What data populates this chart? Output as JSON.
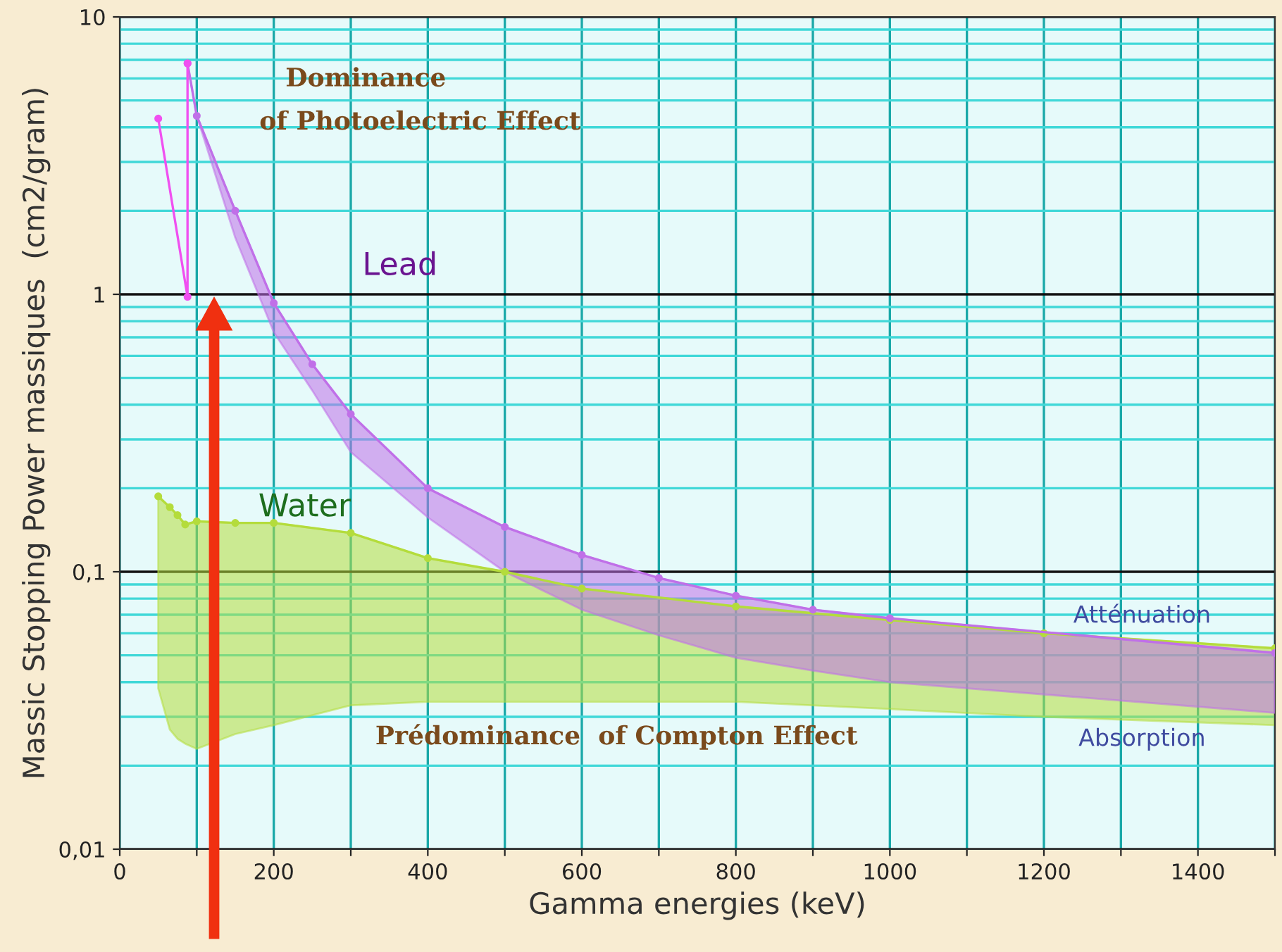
{
  "chart_data": {
    "type": "line",
    "xlabel": "Gamma energies (keV)",
    "ylabel": "Massic Stopping Power massiques  (cm2/gram)",
    "log": "y",
    "grid": true,
    "marker": "circle",
    "line_style": "solid",
    "xlim": [
      0,
      1500
    ],
    "xticks": [
      0,
      {
        "value": 100,
        "label": null
      },
      200,
      {
        "value": 300,
        "label": null
      },
      400,
      {
        "value": 500,
        "label": null
      },
      600,
      {
        "value": 700,
        "label": null
      },
      800,
      {
        "value": 900,
        "label": null
      },
      1000,
      {
        "value": 1100,
        "label": null
      },
      1200,
      {
        "value": 1300,
        "label": null
      },
      1400,
      {
        "value": 1500,
        "label": null
      }
    ],
    "ylim": [
      0.01,
      10
    ],
    "yticks": [
      {
        "value": 0.01,
        "label": "0,01"
      },
      {
        "value": 0.02,
        "label": null
      },
      {
        "value": 0.03,
        "label": null
      },
      {
        "value": 0.04,
        "label": null
      },
      {
        "value": 0.05,
        "label": null
      },
      {
        "value": 0.06,
        "label": null
      },
      {
        "value": 0.07,
        "label": null
      },
      {
        "value": 0.08,
        "label": null
      },
      {
        "value": 0.09,
        "label": null
      },
      {
        "value": 0.1,
        "label": "0,1"
      },
      {
        "value": 0.2,
        "label": null
      },
      {
        "value": 0.3,
        "label": null
      },
      {
        "value": 0.4,
        "label": null
      },
      {
        "value": 0.5,
        "label": null
      },
      {
        "value": 0.6,
        "label": null
      },
      {
        "value": 0.7,
        "label": null
      },
      {
        "value": 0.8,
        "label": null
      },
      {
        "value": 0.9,
        "label": null
      },
      1,
      {
        "value": 2,
        "label": null
      },
      {
        "value": 3,
        "label": null
      },
      {
        "value": 4,
        "label": null
      },
      {
        "value": 5,
        "label": null
      },
      {
        "value": 6,
        "label": null
      },
      {
        "value": 7,
        "label": null
      },
      {
        "value": 8,
        "label": null
      },
      {
        "value": 9,
        "label": null
      },
      10
    ],
    "series": [
      {
        "name": "Water",
        "color": "#b4dc3c",
        "x": [
          50,
          65,
          75,
          85,
          100,
          150,
          200,
          300,
          400,
          500,
          600,
          800,
          1000,
          1200,
          1500
        ],
        "values": [
          0.187,
          0.171,
          0.16,
          0.148,
          0.152,
          0.15,
          0.15,
          0.138,
          0.112,
          0.1,
          0.087,
          0.075,
          0.067,
          0.06,
          0.053
        ],
        "lower": [
          0.038,
          0.027,
          0.025,
          0.024,
          0.023,
          0.026,
          0.028,
          0.033,
          0.034,
          0.034,
          0.034,
          0.034,
          0.032,
          0.03,
          0.028
        ],
        "upper": [
          0.187,
          0.171,
          0.16,
          0.148,
          0.152,
          0.15,
          0.15,
          0.138,
          0.112,
          0.1,
          0.087,
          0.075,
          0.067,
          0.06,
          0.053
        ]
      },
      {
        "name": "Lead",
        "color": "#c070e8",
        "x": [
          88,
          100,
          150,
          200,
          250,
          300,
          400,
          500,
          600,
          700,
          800,
          900,
          1000,
          1500
        ],
        "values": [
          6.8,
          4.4,
          2.0,
          0.93,
          0.56,
          0.37,
          0.2,
          0.145,
          0.115,
          0.095,
          0.082,
          0.073,
          0.068,
          0.051
        ],
        "lower": [
          6.8,
          4.4,
          1.6,
          0.73,
          0.45,
          0.27,
          0.157,
          0.1,
          0.073,
          0.059,
          0.049,
          0.044,
          0.04,
          0.031
        ],
        "upper": [
          6.8,
          4.4,
          2.0,
          0.93,
          0.56,
          0.37,
          0.2,
          0.145,
          0.115,
          0.095,
          0.082,
          0.073,
          0.068,
          0.051
        ]
      },
      {
        "color": "#f050f0",
        "x": [
          50,
          88,
          88
        ],
        "values": [
          4.3,
          0.98,
          6.8
        ]
      }
    ],
    "annotations": [
      "Dominance",
      "of Photoelectric Effect",
      "Prédominance  of Compton Effect",
      "Atténuation",
      "Absorption"
    ]
  }
}
